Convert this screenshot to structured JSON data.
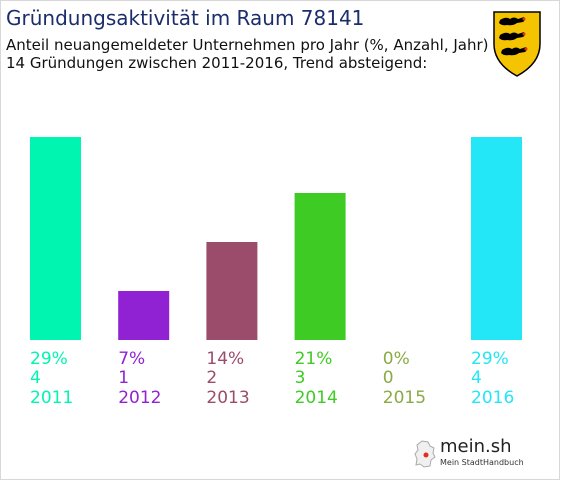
{
  "header": {
    "title": "Gründungsaktivität im Raum 78141",
    "subtitle_line1": "Anteil neuangemeldeter Unternehmen pro Jahr (%, Anzahl, Jahr)",
    "subtitle_line2": "14 Gründungen zwischen 2011-2016, Trend absteigend:"
  },
  "crest": {
    "icon": "baden-wuerttemberg-coat-of-arms-icon",
    "colors": [
      "#f5c400",
      "#000000",
      "#e03020"
    ]
  },
  "chart_data": {
    "type": "bar",
    "categories": [
      "2011",
      "2012",
      "2013",
      "2014",
      "2015",
      "2016"
    ],
    "percent_labels": [
      "29%",
      "7%",
      "14%",
      "21%",
      "0%",
      "29%"
    ],
    "values": [
      29,
      7,
      14,
      21,
      0,
      29
    ],
    "counts": [
      4,
      1,
      2,
      3,
      0,
      4
    ],
    "count_labels": [
      "4",
      "1",
      "2",
      "3",
      "0",
      "4"
    ],
    "colors": [
      "#00f5b0",
      "#9122d4",
      "#9b4c6a",
      "#3ecc24",
      "#8aaa44",
      "#23e6f6"
    ],
    "ylim": [
      0,
      29
    ],
    "grid": false,
    "legend": "none"
  },
  "logo": {
    "text": "mein.sh",
    "subtext": "Mein StadtHandbuch"
  }
}
